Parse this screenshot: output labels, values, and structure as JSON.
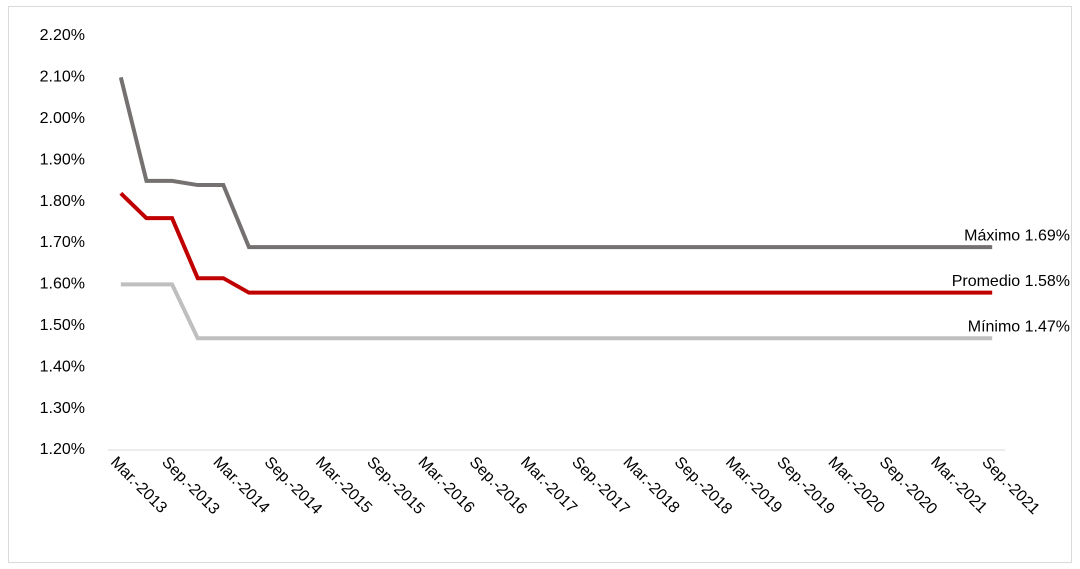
{
  "chart_data": {
    "type": "line",
    "categories": [
      "Mar.-2013",
      null,
      "Sep.-2013",
      null,
      "Mar.-2014",
      null,
      "Sep.-2014",
      null,
      "Mar.-2015",
      null,
      "Sep.-2015",
      null,
      "Mar.-2016",
      null,
      "Sep.-2016",
      null,
      "Mar.-2017",
      null,
      "Sep.-2017",
      null,
      "Mar.-2018",
      null,
      "Sep.-2018",
      null,
      "Mar.-2019",
      null,
      "Sep.-2019",
      null,
      "Mar.-2020",
      null,
      "Sep.-2020",
      null,
      "Mar.-2021",
      null,
      "Sep.-2021"
    ],
    "series": [
      {
        "color": "#767171",
        "values": [
          2.1,
          1.85,
          1.85,
          1.84,
          1.84,
          1.69,
          1.69,
          1.69,
          1.69,
          1.69,
          1.69,
          1.69,
          1.69,
          1.69,
          1.69,
          1.69,
          1.69,
          1.69,
          1.69,
          1.69,
          1.69,
          1.69,
          1.69,
          1.69,
          1.69,
          1.69,
          1.69,
          1.69,
          1.69,
          1.69,
          1.69,
          1.69,
          1.69,
          1.69,
          1.69
        ]
      },
      {
        "color": "#c00000",
        "values": [
          1.82,
          1.76,
          1.76,
          1.615,
          1.615,
          1.58,
          1.58,
          1.58,
          1.58,
          1.58,
          1.58,
          1.58,
          1.58,
          1.58,
          1.58,
          1.58,
          1.58,
          1.58,
          1.58,
          1.58,
          1.58,
          1.58,
          1.58,
          1.58,
          1.58,
          1.58,
          1.58,
          1.58,
          1.58,
          1.58,
          1.58,
          1.58,
          1.58,
          1.58,
          1.58
        ]
      },
      {
        "color": "#bfbfbf",
        "values": [
          1.6,
          1.6,
          1.6,
          1.47,
          1.47,
          1.47,
          1.47,
          1.47,
          1.47,
          1.47,
          1.47,
          1.47,
          1.47,
          1.47,
          1.47,
          1.47,
          1.47,
          1.47,
          1.47,
          1.47,
          1.47,
          1.47,
          1.47,
          1.47,
          1.47,
          1.47,
          1.47,
          1.47,
          1.47,
          1.47,
          1.47,
          1.47,
          1.47,
          1.47,
          1.47
        ]
      }
    ],
    "annotations": [
      "Máximo 1.69%",
      "Promedio 1.58%",
      "Mínimo 1.47%"
    ],
    "ylim": [
      1.2,
      2.2
    ],
    "yticks": [
      {
        "value": 1.2,
        "label": "1.20%"
      },
      {
        "value": 1.3,
        "label": "1.30%"
      },
      {
        "value": 1.4,
        "label": "1.40%"
      },
      {
        "value": 1.5,
        "label": "1.50%"
      },
      {
        "value": 1.6,
        "label": "1.60%"
      },
      {
        "value": 1.7,
        "label": "1.70%"
      },
      {
        "value": 1.8,
        "label": "1.80%"
      },
      {
        "value": 1.9,
        "label": "1.90%"
      },
      {
        "value": 2.0,
        "label": "2.00%"
      },
      {
        "value": 2.1,
        "label": "2.10%"
      },
      {
        "value": 2.2,
        "label": "2.20%"
      }
    ],
    "grid": false
  }
}
